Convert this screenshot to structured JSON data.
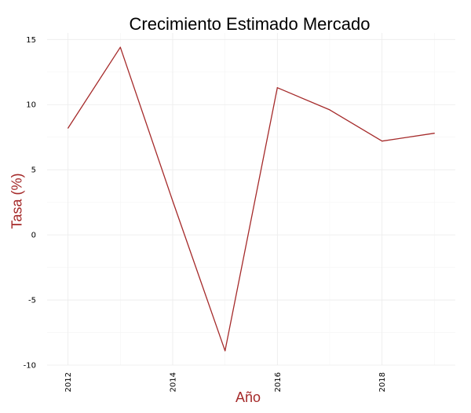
{
  "chart_data": {
    "type": "line",
    "title": "Crecimiento Estimado Mercado",
    "xlabel": "Año",
    "ylabel": "Tasa (%)",
    "x": [
      2012,
      2013,
      2014,
      2015,
      2016,
      2017,
      2018,
      2019
    ],
    "series": [
      {
        "values": [
          8.2,
          14.4,
          2.6,
          -8.9,
          11.3,
          9.6,
          7.2,
          7.8
        ],
        "color": "#A52A2A"
      }
    ],
    "xlim": [
      2011.6,
      2019.4
    ],
    "ylim": [
      -10,
      15.5
    ],
    "xticks": [
      "2012",
      "2014",
      "2016",
      "2018"
    ],
    "yticks": [
      "15",
      "10",
      "5",
      "0",
      "-5",
      "-10"
    ],
    "grid": true,
    "legend": "none",
    "colors": {
      "line": "#A52A2A",
      "axis_title": "#A52A2A",
      "grid": "#EBEBEB"
    }
  }
}
